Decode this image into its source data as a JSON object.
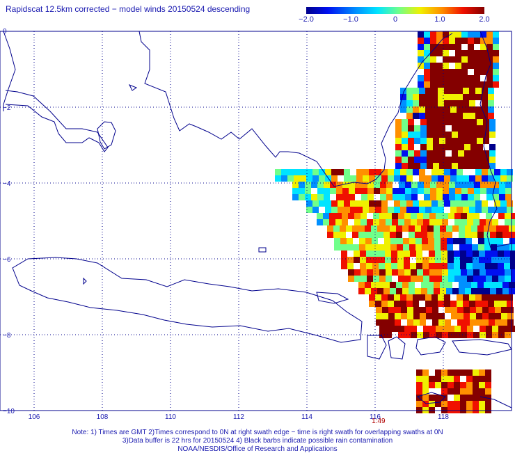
{
  "title": "Rapidscat 12.5km corrected − model winds 20150524 descending",
  "colorbar": {
    "labels": [
      "−2.0",
      "−1.0",
      "0",
      "1.0",
      "2.0"
    ],
    "min": -2.0,
    "max": 2.0,
    "colors": [
      "#00008c",
      "#0010f0",
      "#0090ff",
      "#00e4ff",
      "#70ff8a",
      "#f0f000",
      "#ff9000",
      "#f01000",
      "#840000"
    ]
  },
  "map": {
    "lon_range": [
      105,
      120
    ],
    "lat_range": [
      0,
      -10
    ],
    "lon_ticks": [
      "106",
      "108",
      "110",
      "112",
      "114",
      "116",
      "118"
    ],
    "lat_ticks": [
      "0",
      "−2",
      "−4",
      "−6",
      "−8",
      "−10"
    ],
    "time_labels": [
      "1:49"
    ],
    "coast_color": "#00008c",
    "grid_style": "dotted"
  },
  "notes": [
    "Note: 1) Times are GMT 2)Times correspond to 0N at right swath edge − time is right swath for overlapping swaths at 0N",
    "3)Data buffer is 22 hrs for 20150524 4) Black barbs indicate possible rain contamination",
    "NOAA/NESDIS/Office of Research and Applications"
  ]
}
